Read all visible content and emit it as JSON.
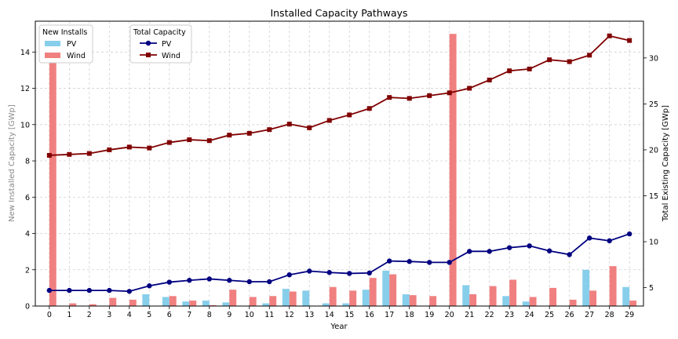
{
  "chart_data": {
    "type": "bar+line",
    "title": "Installed Capacity Pathways",
    "xlabel": "Year",
    "ylabel_left": "New Installed Capacity [GWp]",
    "ylabel_right": "Total Existing Capacity [GWp]",
    "ylim_left": [
      0,
      15.7
    ],
    "ylim_right": [
      3.0,
      34.0
    ],
    "yticks_left": [
      0,
      2,
      4,
      6,
      8,
      10,
      12,
      14
    ],
    "yticks_right": [
      5,
      10,
      15,
      20,
      25,
      30
    ],
    "grid": true,
    "categories": [
      0,
      1,
      2,
      3,
      4,
      5,
      6,
      7,
      8,
      9,
      10,
      11,
      12,
      13,
      14,
      15,
      16,
      17,
      18,
      19,
      20,
      21,
      22,
      23,
      24,
      25,
      26,
      27,
      28,
      29
    ],
    "bar_series": [
      {
        "name": "PV",
        "color": "#87CEEB",
        "values": [
          0,
          0,
          0,
          0,
          0,
          0.65,
          0.5,
          0.25,
          0.3,
          0.2,
          0,
          0.15,
          0.95,
          0.85,
          0.15,
          0.15,
          0.9,
          1.95,
          0.65,
          0,
          0,
          1.15,
          0,
          0.55,
          0.25,
          0,
          0,
          2.0,
          0,
          1.05
        ]
      },
      {
        "name": "Wind",
        "color": "#F08080",
        "values": [
          13.4,
          0.15,
          0.1,
          0.45,
          0.35,
          0,
          0.55,
          0.3,
          0.05,
          0.9,
          0.5,
          0.55,
          0.8,
          0,
          1.05,
          0.85,
          1.55,
          1.75,
          0.6,
          0.55,
          15.0,
          0.65,
          1.1,
          1.45,
          0.5,
          1.0,
          0.35,
          0.85,
          2.2,
          0.3
        ]
      }
    ],
    "line_series": [
      {
        "name": "PV",
        "color": "#000080",
        "marker": "circle",
        "values": [
          4.7,
          4.7,
          4.7,
          4.7,
          4.6,
          5.2,
          5.6,
          5.8,
          5.95,
          5.8,
          5.65,
          5.65,
          6.4,
          6.8,
          6.65,
          6.55,
          6.6,
          7.9,
          7.85,
          7.75,
          7.75,
          8.95,
          8.95,
          9.35,
          9.55,
          9.0,
          8.6,
          10.4,
          10.1,
          10.85
        ]
      },
      {
        "name": "Wind",
        "color": "#800000",
        "marker": "square",
        "values": [
          19.4,
          19.5,
          19.6,
          20.0,
          20.3,
          20.2,
          20.8,
          21.1,
          21.0,
          21.6,
          21.8,
          22.2,
          22.8,
          22.4,
          23.2,
          23.8,
          24.5,
          25.7,
          25.6,
          25.9,
          26.2,
          26.7,
          27.6,
          28.6,
          28.8,
          29.8,
          29.6,
          30.3,
          32.4,
          31.9
        ]
      }
    ],
    "legends": [
      {
        "title": "New Installs",
        "placement": "top-left",
        "entries": [
          "PV",
          "Wind"
        ]
      },
      {
        "title": "Total Capacity",
        "placement": "top-left-inner",
        "entries": [
          "PV",
          "Wind"
        ]
      }
    ]
  }
}
